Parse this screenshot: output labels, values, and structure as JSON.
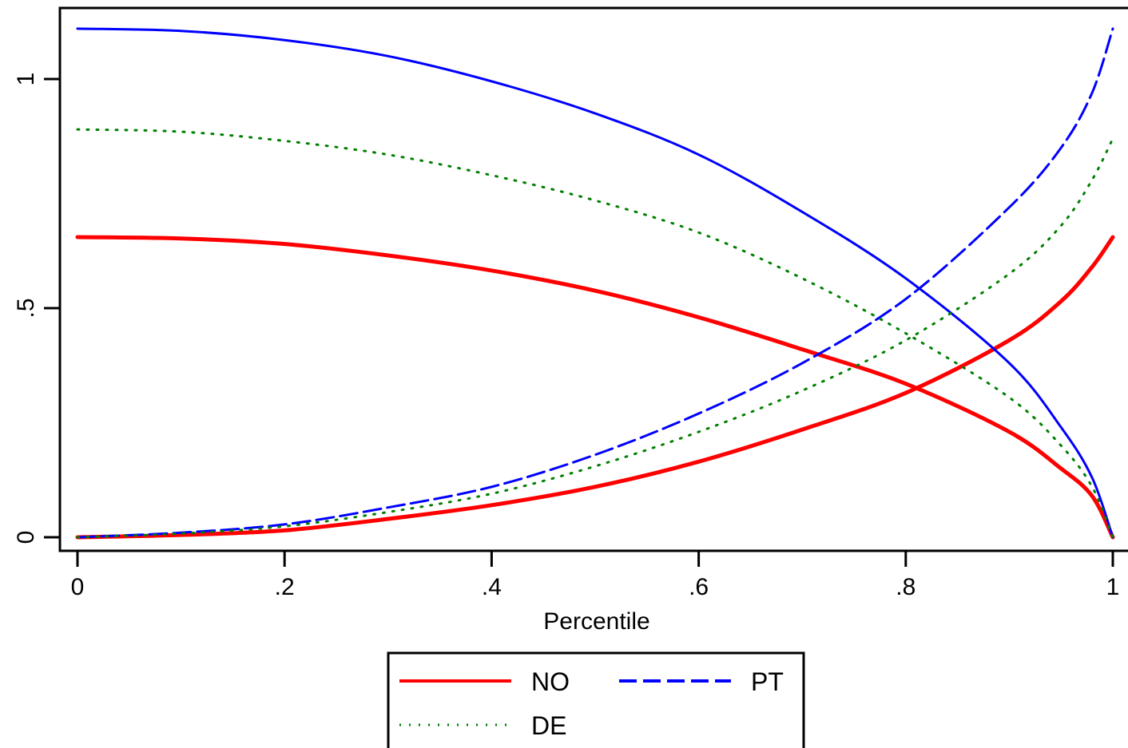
{
  "chart_data": {
    "type": "line",
    "title": "",
    "xlabel": "Percentile",
    "ylabel": "",
    "xlim": [
      0,
      1
    ],
    "ylim": [
      0,
      1.1
    ],
    "x_ticks": [
      {
        "value": 0,
        "label": "0"
      },
      {
        "value": 0.2,
        "label": ".2"
      },
      {
        "value": 0.4,
        "label": ".4"
      },
      {
        "value": 0.6,
        "label": ".6"
      },
      {
        "value": 0.8,
        "label": ".8"
      },
      {
        "value": 1,
        "label": "1"
      }
    ],
    "y_ticks": [
      {
        "value": 0,
        "label": "0"
      },
      {
        "value": 0.5,
        "label": ".5"
      },
      {
        "value": 1,
        "label": "1"
      }
    ],
    "grid": false,
    "legend_position": "bottom",
    "legend": [
      {
        "name": "NO",
        "color": "#ff0000",
        "style": "solid"
      },
      {
        "name": "PT",
        "color": "#0000ff",
        "style": "dashed"
      },
      {
        "name": "DE",
        "color": "#008000",
        "style": "dotted"
      }
    ],
    "x": [
      0,
      0.1,
      0.2,
      0.3,
      0.4,
      0.5,
      0.6,
      0.7,
      0.8,
      0.9,
      0.95,
      0.98,
      1.0
    ],
    "series": [
      {
        "name": "NO",
        "curve": "decreasing",
        "color": "#ff0000",
        "style": "solid",
        "values": [
          0.655,
          0.652,
          0.64,
          0.615,
          0.582,
          0.538,
          0.48,
          0.41,
          0.335,
          0.23,
          0.15,
          0.09,
          0.0
        ]
      },
      {
        "name": "NO",
        "curve": "increasing",
        "color": "#ff0000",
        "style": "solid",
        "values": [
          0.0,
          0.005,
          0.015,
          0.04,
          0.07,
          0.11,
          0.165,
          0.235,
          0.315,
          0.43,
          0.515,
          0.59,
          0.655
        ]
      },
      {
        "name": "PT",
        "curve": "decreasing",
        "color": "#0000ff",
        "style": "solid",
        "values": [
          1.11,
          1.105,
          1.085,
          1.05,
          0.995,
          0.925,
          0.835,
          0.71,
          0.565,
          0.38,
          0.24,
          0.13,
          0.0
        ]
      },
      {
        "name": "PT",
        "curve": "increasing",
        "color": "#0000ff",
        "style": "dashed",
        "values": [
          0.0,
          0.01,
          0.028,
          0.065,
          0.11,
          0.18,
          0.27,
          0.38,
          0.52,
          0.72,
          0.85,
          0.97,
          1.11
        ]
      },
      {
        "name": "DE",
        "curve": "decreasing",
        "color": "#008000",
        "style": "dotted",
        "values": [
          0.89,
          0.885,
          0.865,
          0.835,
          0.79,
          0.735,
          0.665,
          0.565,
          0.445,
          0.305,
          0.2,
          0.11,
          0.0
        ]
      },
      {
        "name": "DE",
        "curve": "increasing",
        "color": "#008000",
        "style": "dotted",
        "values": [
          0.0,
          0.008,
          0.024,
          0.055,
          0.095,
          0.155,
          0.23,
          0.32,
          0.43,
          0.575,
          0.68,
          0.78,
          0.87
        ]
      }
    ]
  }
}
